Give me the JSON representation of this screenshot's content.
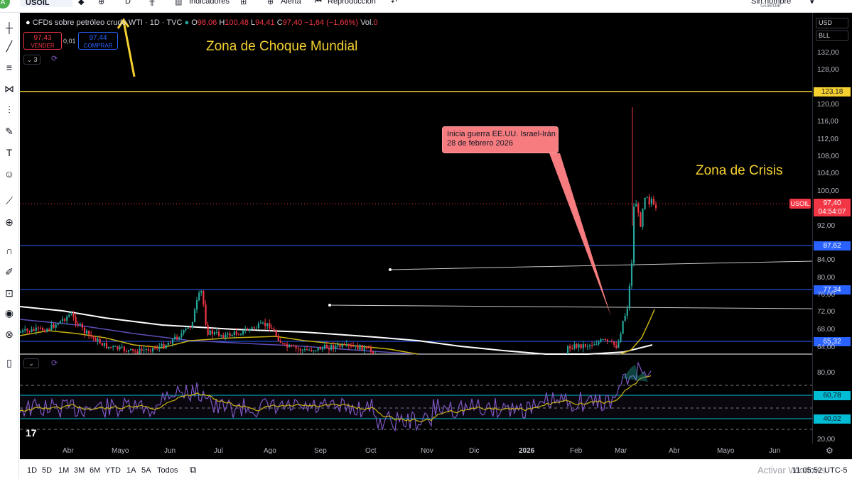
{
  "topbar": {
    "avatar": "A",
    "symbol": "USOIL",
    "interval": "D",
    "indicators": "Indicadores",
    "alert": "Alerta",
    "replay": "Reproducción",
    "save_sub": "Sin nombre",
    "save": "Guardar"
  },
  "legend": {
    "title": "CFDs sobre petróleo crudo WTI · 1D · TVC",
    "open_l": "O",
    "open": "98,06",
    "high_l": "H",
    "high": "100,48",
    "low_l": "L",
    "low": "94,41",
    "close_l": "C",
    "close": "97,40",
    "change": "−1,64 (−1,66%)",
    "vol_l": "Vol.",
    "vol": "0"
  },
  "trade": {
    "sell_price": "97,43",
    "sell_label": "VENDER",
    "spread": "0,01",
    "buy_price": "97,44",
    "buy_label": "COMPRAR",
    "collapse_count": "3"
  },
  "annotations": {
    "zona_choque": "Zona de Choque Mundial",
    "zona_crisis": "Zona de Crisis",
    "callout_line1": "Inicia guerra EE.UU. Israel-Irán",
    "callout_line2": "28 de febrero 2026"
  },
  "price_axis": {
    "currency": "USD",
    "unit": "BLL",
    "ticks": [
      "132,00",
      "128,00",
      "120,00",
      "116,00",
      "112,00",
      "108,00",
      "104,00",
      "100,00",
      "92,00",
      "84,00",
      "80,00",
      "76,00",
      "72,00",
      "68,00",
      "64,00"
    ],
    "level_123": "123,18",
    "level_87": "87,62",
    "level_77": "77,34",
    "level_65": "65,32",
    "last_price": "97,40",
    "countdown": "04:54:07",
    "symbol_tag": "USOIL"
  },
  "rsi_axis": {
    "ticks": [
      "80,00",
      "20,00"
    ],
    "level_60": "60,78",
    "level_40": "40,02"
  },
  "time_axis": [
    "Abr",
    "Mayo",
    "Jun",
    "Jul",
    "Ago",
    "Sep",
    "Oct",
    "Nov",
    "Dic",
    "2026",
    "Feb",
    "Mar",
    "Abr",
    "Mayo",
    "Jun"
  ],
  "bottombar": {
    "ranges": [
      "1D",
      "5D",
      "1M",
      "3M",
      "6M",
      "YTD",
      "1A",
      "5A",
      "Todos"
    ],
    "clock": "11:05:52 UTC-5",
    "watermark": "Activar Windows"
  },
  "colors": {
    "up": "#26a69a",
    "down": "#f23645",
    "resistance": "#f5d130",
    "support": "#2962ff",
    "ma_white": "#ffffff",
    "ma_yellow": "#c9b312",
    "rsi": "#7e57c2"
  },
  "icons": [
    "crosshair-icon",
    "trendline-icon",
    "fib-icon",
    "pattern-icon",
    "channel-icon",
    "brush-icon",
    "text-icon",
    "emoji-icon",
    "ruler-icon",
    "zoom-icon",
    "magnet-icon",
    "lock-draw-icon",
    "lock-icon",
    "eye-icon",
    "globe-icon",
    "trash-icon"
  ]
}
